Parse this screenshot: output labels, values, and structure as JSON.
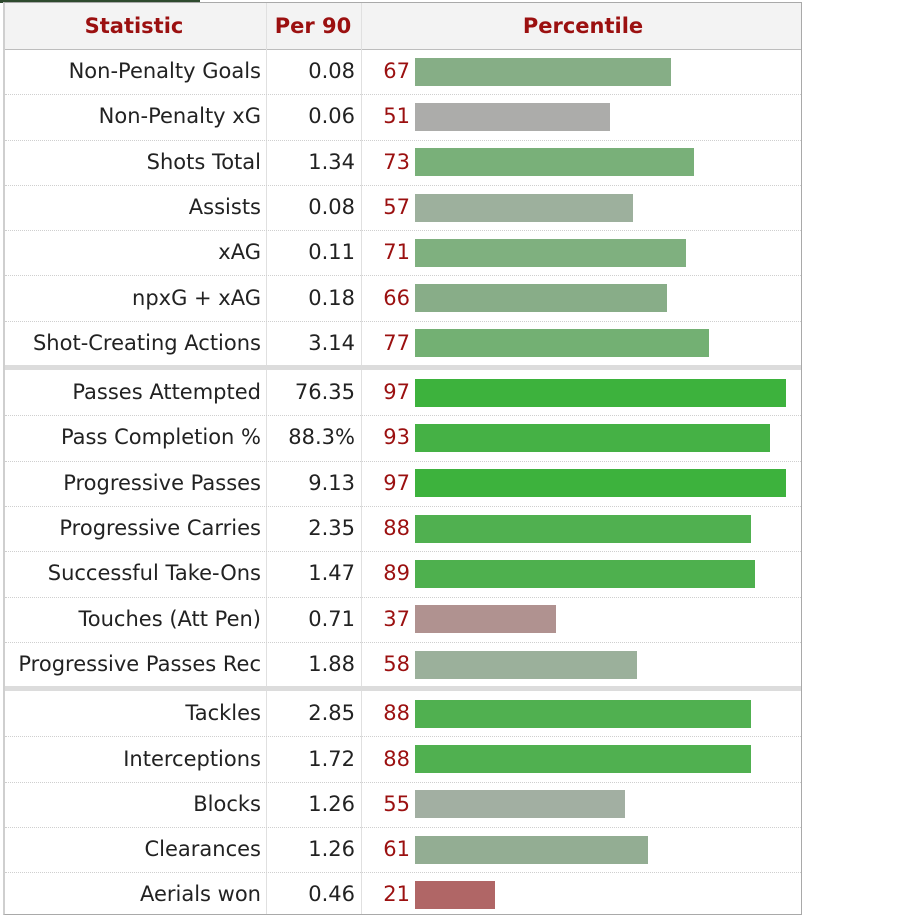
{
  "chart_data": {
    "type": "bar",
    "orientation": "horizontal",
    "columns": [
      "Statistic",
      "Per 90",
      "Percentile"
    ],
    "xlim": [
      0,
      100
    ],
    "groups": [
      [
        {
          "stat": "Non-Penalty Goals",
          "per90": "0.08",
          "percentile": 67,
          "color": "#86ae86"
        },
        {
          "stat": "Non-Penalty xG",
          "per90": "0.06",
          "percentile": 51,
          "color": "#acacaa"
        },
        {
          "stat": "Shots Total",
          "per90": "1.34",
          "percentile": 73,
          "color": "#79b079"
        },
        {
          "stat": "Assists",
          "per90": "0.08",
          "percentile": 57,
          "color": "#9db09d"
        },
        {
          "stat": "xAG",
          "per90": "0.11",
          "percentile": 71,
          "color": "#7fb07f"
        },
        {
          "stat": "npxG + xAG",
          "per90": "0.18",
          "percentile": 66,
          "color": "#88ad88"
        },
        {
          "stat": "Shot-Creating Actions",
          "per90": "3.14",
          "percentile": 77,
          "color": "#73b073"
        }
      ],
      [
        {
          "stat": "Passes Attempted",
          "per90": "76.35",
          "percentile": 97,
          "color": "#3db23d"
        },
        {
          "stat": "Pass Completion %",
          "per90": "88.3%",
          "percentile": 93,
          "color": "#45b145"
        },
        {
          "stat": "Progressive Passes",
          "per90": "9.13",
          "percentile": 97,
          "color": "#3db23d"
        },
        {
          "stat": "Progressive Carries",
          "per90": "2.35",
          "percentile": 88,
          "color": "#50b050"
        },
        {
          "stat": "Successful Take-Ons",
          "per90": "1.47",
          "percentile": 89,
          "color": "#4eb04e"
        },
        {
          "stat": "Touches (Att Pen)",
          "per90": "0.71",
          "percentile": 37,
          "color": "#b09290"
        },
        {
          "stat": "Progressive Passes Rec",
          "per90": "1.88",
          "percentile": 58,
          "color": "#9bb09b"
        }
      ],
      [
        {
          "stat": "Tackles",
          "per90": "2.85",
          "percentile": 88,
          "color": "#50b050"
        },
        {
          "stat": "Interceptions",
          "per90": "1.72",
          "percentile": 88,
          "color": "#50b050"
        },
        {
          "stat": "Blocks",
          "per90": "1.26",
          "percentile": 55,
          "color": "#a2afa2"
        },
        {
          "stat": "Clearances",
          "per90": "1.26",
          "percentile": 61,
          "color": "#93ad93"
        },
        {
          "stat": "Aerials won",
          "per90": "0.46",
          "percentile": 21,
          "color": "#b06666"
        }
      ]
    ]
  }
}
